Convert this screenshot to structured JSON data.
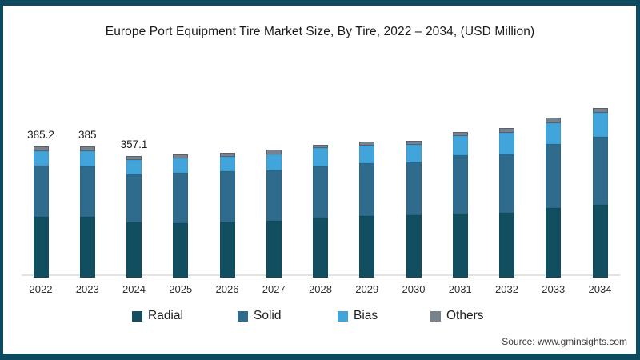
{
  "page": {
    "title": "Europe Port Equipment Tire Market Size, By Tire, 2022 – 2034, (USD Million)",
    "source": "Source: www.gminsights.com"
  },
  "colors": {
    "frame": "#0D4A5F",
    "axis_line": "#E3E3E3",
    "title_text": "#1B1B1B",
    "radial": "#114E60",
    "solid": "#2F6B8C",
    "bias": "#41A5DC",
    "others": "#76828E"
  },
  "chart_data": {
    "type": "bar",
    "stacked": true,
    "title": "Europe Port Equipment Tire Market Size, By Tire, 2022 – 2034, (USD Million)",
    "xlabel": "",
    "ylabel": "USD Million",
    "unit": "USD Million",
    "grid": false,
    "legend_position": "bottom",
    "ylim": [
      0,
      520
    ],
    "categories": [
      "2022",
      "2023",
      "2024",
      "2025",
      "2026",
      "2027",
      "2028",
      "2029",
      "2030",
      "2031",
      "2032",
      "2033",
      "2034"
    ],
    "series": [
      {
        "name": "Radial",
        "color": "#114E60",
        "values": [
          177.5,
          176.8,
          160.4,
          158.8,
          161.6,
          166.7,
          174.5,
          179.8,
          182.2,
          186.2,
          190.2,
          204.2,
          213.6
        ]
      },
      {
        "name": "Solid",
        "color": "#2F6B8C",
        "values": [
          149.9,
          148.2,
          141.7,
          148.5,
          149.4,
          146.4,
          150.6,
          154.5,
          154.5,
          171.6,
          170.9,
          186.2,
          199.0
        ]
      },
      {
        "name": "Bias",
        "color": "#41A5DC",
        "values": [
          42.2,
          44.1,
          43.3,
          41.2,
          43.1,
          47.5,
          53.2,
          52.0,
          52.5,
          57.4,
          62.1,
          62.3,
          69.1
        ]
      },
      {
        "name": "Others",
        "color": "#76828E",
        "values": [
          15.6,
          15.9,
          11.7,
          13.3,
          12.4,
          14.1,
          10.5,
          12.9,
          12.4,
          12.2,
          13.6,
          15.7,
          15.9
        ]
      }
    ],
    "totals": [
      385.2,
      385,
      357.1,
      361.8,
      366.5,
      374.7,
      388.8,
      399.2,
      401.6,
      427.4,
      436.8,
      468.4,
      497.6
    ],
    "data_labels": [
      "385.2",
      "385",
      "357.1",
      "",
      "",
      "",
      "",
      "",
      "",
      "",
      "",
      "",
      ""
    ]
  }
}
